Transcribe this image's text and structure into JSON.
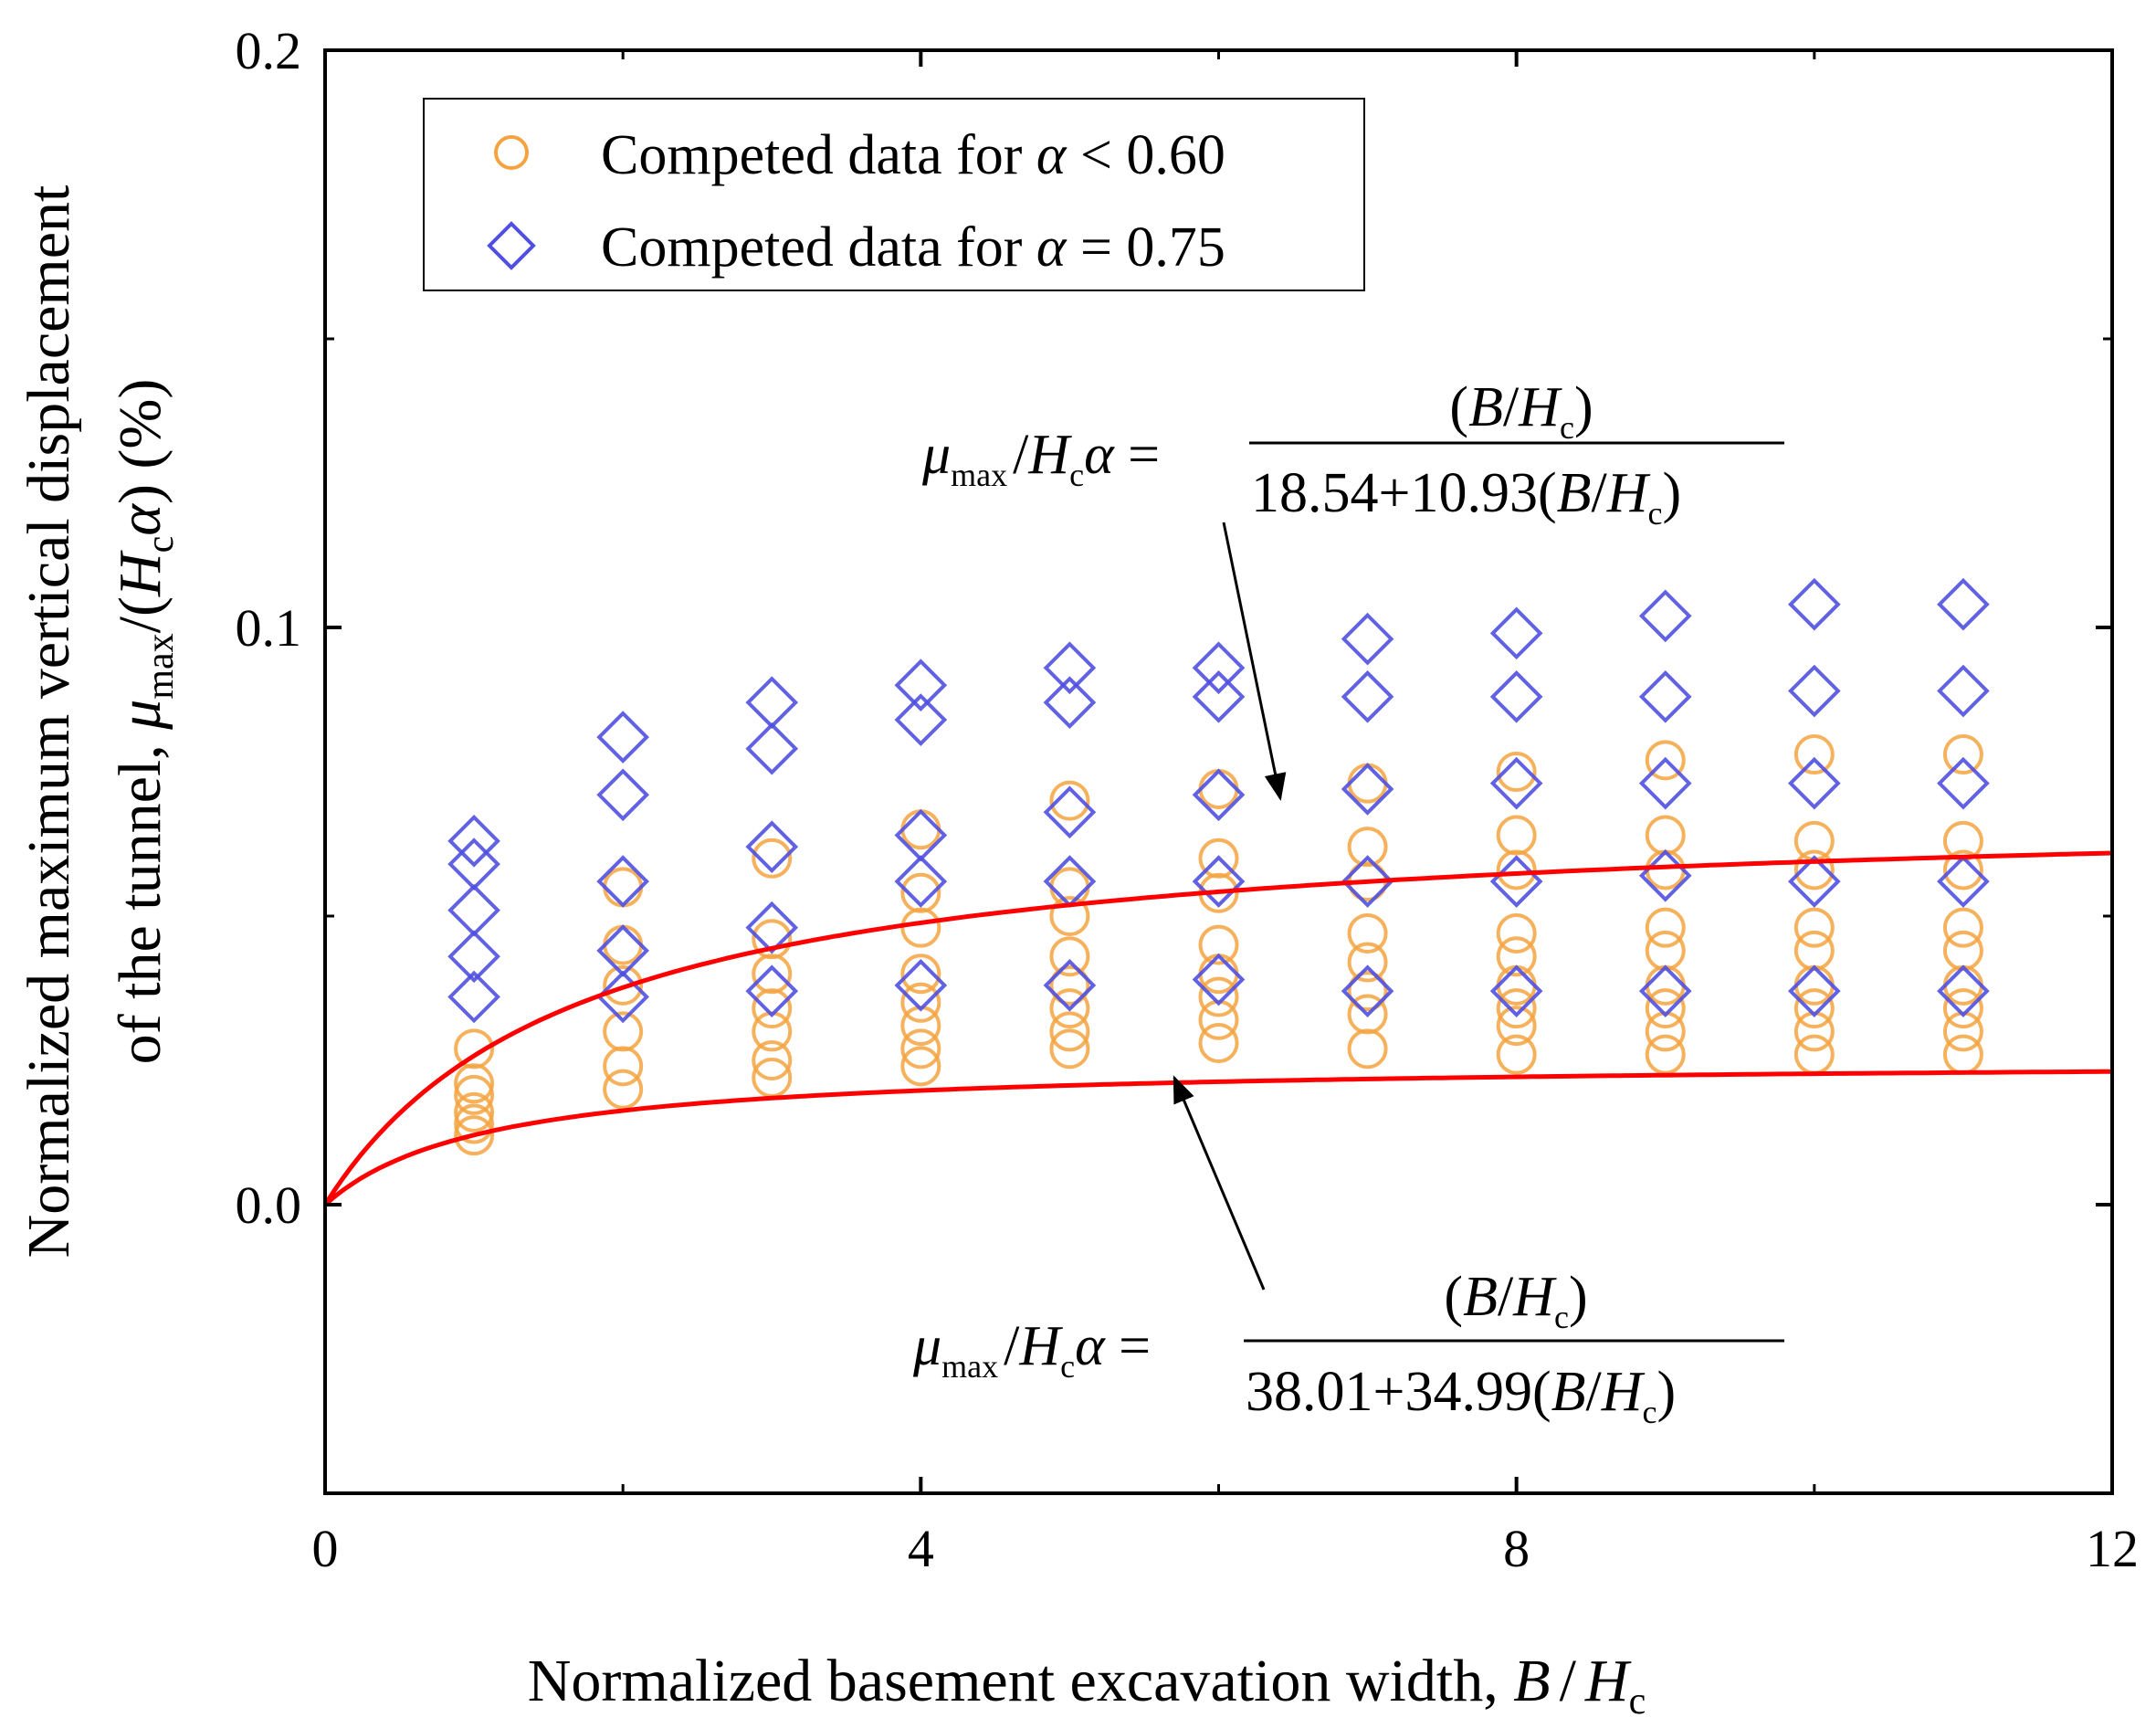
{
  "chart_data": {
    "type": "scatter",
    "title": "",
    "xlabel": "Normalized basement excavation width, B / H_c",
    "xlabel_parts": {
      "main": "Normalized basement excavation width, ",
      "B": "B",
      "slash": "/",
      "H": "H",
      "sub": "c"
    },
    "ylabel_line1": "Normalized maximum vertical displacement",
    "ylabel_line2_parts": {
      "pre": "of the tunnel, ",
      "mu": "μ",
      "max": "max",
      "mid": "/(",
      "H": "H",
      "sub": "c",
      "alpha": "α",
      "post": ") (%)"
    },
    "xlim": [
      0,
      12
    ],
    "ylim": [
      -0.05,
      0.2
    ],
    "xticks": [
      "0",
      "4",
      "8",
      "12"
    ],
    "xtick_values": [
      0,
      4,
      8,
      12
    ],
    "yticks": [
      "0.0",
      "0.1",
      "0.2"
    ],
    "ytick_values": [
      0.0,
      0.1,
      0.2
    ],
    "legend": {
      "position": "top-left",
      "entries": [
        {
          "marker": "circle",
          "pre": "Competed data for ",
          "alpha": "α",
          "rel": " < 0.60"
        },
        {
          "marker": "diamond",
          "pre": "Competed data for ",
          "alpha": "α",
          "rel": " = 0.75"
        }
      ]
    },
    "series": [
      {
        "name": "Competed data for α < 0.60",
        "marker": "circle",
        "color": "#F5A340",
        "points": [
          [
            1,
            0.027
          ],
          [
            1,
            0.021
          ],
          [
            1,
            0.019
          ],
          [
            1,
            0.016
          ],
          [
            1,
            0.014
          ],
          [
            1,
            0.012
          ],
          [
            2,
            0.055
          ],
          [
            2,
            0.045
          ],
          [
            2,
            0.038
          ],
          [
            2,
            0.03
          ],
          [
            2,
            0.024
          ],
          [
            2,
            0.02
          ],
          [
            3,
            0.06
          ],
          [
            3,
            0.046
          ],
          [
            3,
            0.04
          ],
          [
            3,
            0.034
          ],
          [
            3,
            0.03
          ],
          [
            3,
            0.025
          ],
          [
            3,
            0.022
          ],
          [
            4,
            0.065
          ],
          [
            4,
            0.054
          ],
          [
            4,
            0.048
          ],
          [
            4,
            0.04
          ],
          [
            4,
            0.035
          ],
          [
            4,
            0.031
          ],
          [
            4,
            0.027
          ],
          [
            4,
            0.024
          ],
          [
            5,
            0.07
          ],
          [
            5,
            0.055
          ],
          [
            5,
            0.05
          ],
          [
            5,
            0.043
          ],
          [
            5,
            0.038
          ],
          [
            5,
            0.034
          ],
          [
            5,
            0.03
          ],
          [
            5,
            0.027
          ],
          [
            6,
            0.072
          ],
          [
            6,
            0.06
          ],
          [
            6,
            0.054
          ],
          [
            6,
            0.045
          ],
          [
            6,
            0.04
          ],
          [
            6,
            0.036
          ],
          [
            6,
            0.032
          ],
          [
            6,
            0.028
          ],
          [
            7,
            0.073
          ],
          [
            7,
            0.062
          ],
          [
            7,
            0.056
          ],
          [
            7,
            0.047
          ],
          [
            7,
            0.042
          ],
          [
            7,
            0.037
          ],
          [
            7,
            0.033
          ],
          [
            7,
            0.027
          ],
          [
            8,
            0.075
          ],
          [
            8,
            0.064
          ],
          [
            8,
            0.058
          ],
          [
            8,
            0.047
          ],
          [
            8,
            0.043
          ],
          [
            8,
            0.038
          ],
          [
            8,
            0.034
          ],
          [
            8,
            0.031
          ],
          [
            8,
            0.026
          ],
          [
            9,
            0.077
          ],
          [
            9,
            0.064
          ],
          [
            9,
            0.058
          ],
          [
            9,
            0.048
          ],
          [
            9,
            0.044
          ],
          [
            9,
            0.038
          ],
          [
            9,
            0.034
          ],
          [
            9,
            0.03
          ],
          [
            9,
            0.026
          ],
          [
            10,
            0.078
          ],
          [
            10,
            0.063
          ],
          [
            10,
            0.058
          ],
          [
            10,
            0.048
          ],
          [
            10,
            0.044
          ],
          [
            10,
            0.038
          ],
          [
            10,
            0.034
          ],
          [
            10,
            0.03
          ],
          [
            10,
            0.026
          ],
          [
            11,
            0.078
          ],
          [
            11,
            0.063
          ],
          [
            11,
            0.058
          ],
          [
            11,
            0.048
          ],
          [
            11,
            0.044
          ],
          [
            11,
            0.038
          ],
          [
            11,
            0.034
          ],
          [
            11,
            0.03
          ],
          [
            11,
            0.026
          ]
        ]
      },
      {
        "name": "Competed data for α = 0.75",
        "marker": "diamond",
        "color": "#5050E0",
        "points": [
          [
            1,
            0.063
          ],
          [
            1,
            0.059
          ],
          [
            1,
            0.051
          ],
          [
            1,
            0.043
          ],
          [
            1,
            0.036
          ],
          [
            2,
            0.081
          ],
          [
            2,
            0.071
          ],
          [
            2,
            0.056
          ],
          [
            2,
            0.044
          ],
          [
            2,
            0.036
          ],
          [
            3,
            0.087
          ],
          [
            3,
            0.079
          ],
          [
            3,
            0.062
          ],
          [
            3,
            0.048
          ],
          [
            3,
            0.037
          ],
          [
            4,
            0.09
          ],
          [
            4,
            0.084
          ],
          [
            4,
            0.064
          ],
          [
            4,
            0.056
          ],
          [
            4,
            0.038
          ],
          [
            5,
            0.093
          ],
          [
            5,
            0.087
          ],
          [
            5,
            0.068
          ],
          [
            5,
            0.056
          ],
          [
            5,
            0.038
          ],
          [
            6,
            0.093
          ],
          [
            6,
            0.088
          ],
          [
            6,
            0.071
          ],
          [
            6,
            0.056
          ],
          [
            6,
            0.039
          ],
          [
            7,
            0.098
          ],
          [
            7,
            0.088
          ],
          [
            7,
            0.072
          ],
          [
            7,
            0.056
          ],
          [
            7,
            0.037
          ],
          [
            8,
            0.099
          ],
          [
            8,
            0.088
          ],
          [
            8,
            0.073
          ],
          [
            8,
            0.056
          ],
          [
            8,
            0.037
          ],
          [
            9,
            0.102
          ],
          [
            9,
            0.088
          ],
          [
            9,
            0.073
          ],
          [
            9,
            0.057
          ],
          [
            9,
            0.037
          ],
          [
            10,
            0.104
          ],
          [
            10,
            0.089
          ],
          [
            10,
            0.073
          ],
          [
            10,
            0.056
          ],
          [
            10,
            0.037
          ],
          [
            11,
            0.104
          ],
          [
            11,
            0.089
          ],
          [
            11,
            0.073
          ],
          [
            11,
            0.056
          ],
          [
            11,
            0.037
          ]
        ]
      }
    ],
    "fits": [
      {
        "name": "upper fit",
        "color": "#FF0000",
        "a": 18.54,
        "b": 10.93,
        "x_range": [
          0,
          12
        ],
        "scale": 1.14,
        "shape": "hyperbolic"
      },
      {
        "name": "lower fit",
        "color": "#FF0000",
        "a": 38.01,
        "b": 34.99,
        "x_range": [
          0,
          12
        ],
        "scale": 0.0,
        "shape": "hyperbolic"
      }
    ],
    "annotations": [
      {
        "name": "upper-equation",
        "lhs": {
          "mu": "μ",
          "max": "max",
          "slash": "/",
          "H": "H",
          "sub": "c",
          "alpha": "α",
          "eq": " ="
        },
        "numerator": {
          "open": "(",
          "B": "B",
          "slash": "/",
          "H": "H",
          "sub": "c",
          "close": ")"
        },
        "denominator": {
          "text": "18.54+10.93",
          "open": "(",
          "B": "B",
          "slash": "/",
          "H": "H",
          "sub": "c",
          "close": ")"
        }
      },
      {
        "name": "lower-equation",
        "lhs": {
          "mu": "μ",
          "max": "max",
          "slash": "/",
          "H": "H",
          "sub": "c",
          "alpha": "α",
          "eq": " ="
        },
        "numerator": {
          "open": "(",
          "B": "B",
          "slash": "/",
          "H": "H",
          "sub": "c",
          "close": ")"
        },
        "denominator": {
          "text": "38.01+34.99",
          "open": "(",
          "B": "B",
          "slash": "/",
          "H": "H",
          "sub": "c",
          "close": ")"
        }
      }
    ],
    "colors": {
      "axis": "#000000",
      "fit": "#FF0000",
      "circle": "#F5A340",
      "diamond": "#5050E0",
      "background": "#FFFFFF"
    }
  }
}
